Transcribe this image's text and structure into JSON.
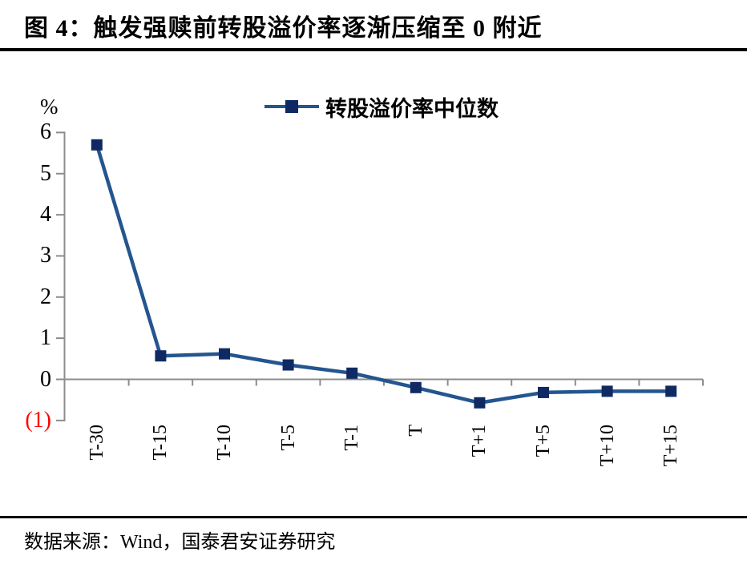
{
  "figure": {
    "title": "图 4：触发强赎前转股溢价率逐渐压缩至 0 附近",
    "source": "数据来源：Wind，国泰君安证券研究"
  },
  "chart_data": {
    "type": "line",
    "title": "图 4：触发强赎前转股溢价率逐渐压缩至 0 附近",
    "unit_label": "%",
    "categories": [
      "T-30",
      "T-15",
      "T-10",
      "T-5",
      "T-1",
      "T",
      "T+1",
      "T+5",
      "T+10",
      "T+15"
    ],
    "series": [
      {
        "name": "转股溢价率中位数",
        "values": [
          5.7,
          0.57,
          0.62,
          0.35,
          0.15,
          -0.2,
          -0.57,
          -0.32,
          -0.29,
          -0.29
        ]
      }
    ],
    "ylim": [
      -1,
      6
    ],
    "yticks": [
      {
        "value": 6,
        "label": "6",
        "color": "#000000"
      },
      {
        "value": 5,
        "label": "5",
        "color": "#000000"
      },
      {
        "value": 4,
        "label": "4",
        "color": "#000000"
      },
      {
        "value": 3,
        "label": "3",
        "color": "#000000"
      },
      {
        "value": 2,
        "label": "2",
        "color": "#000000"
      },
      {
        "value": 1,
        "label": "1",
        "color": "#000000"
      },
      {
        "value": 0,
        "label": "0",
        "color": "#000000"
      },
      {
        "value": -1,
        "label": "(1)",
        "color": "#FF0000"
      }
    ],
    "grid": false,
    "legend_position": "top-center",
    "marker": "square",
    "colors": {
      "line": "#24558E",
      "marker": "#0F2A63",
      "axis": "#8C8C8C"
    }
  }
}
